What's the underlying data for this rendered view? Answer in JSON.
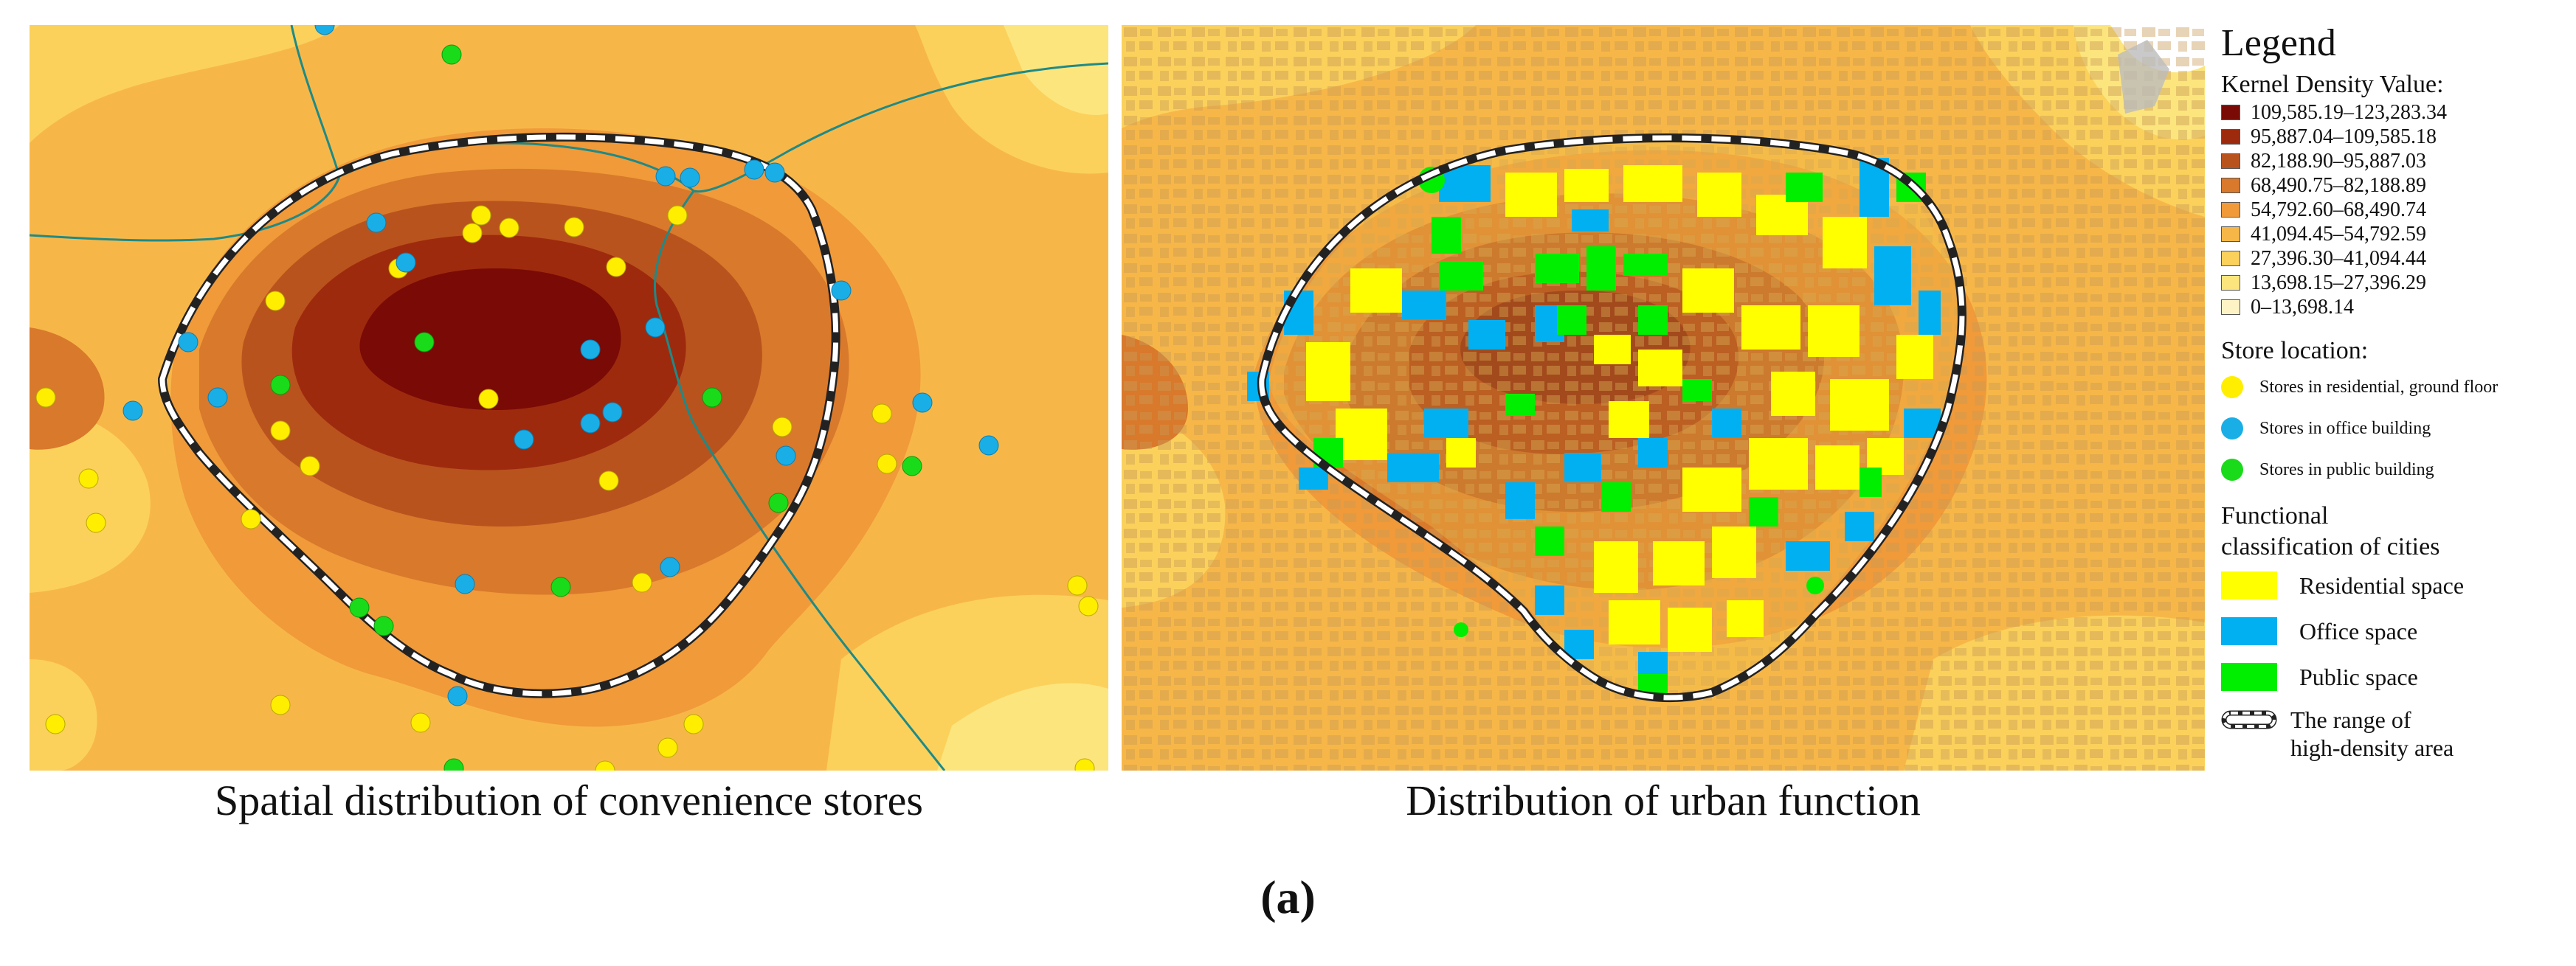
{
  "captions": {
    "left": "Spatial distribution of convenience stores",
    "right": "Distribution of urban function",
    "figure_label": "(a)"
  },
  "legend": {
    "title": "Legend",
    "kernel_density_heading": "Kernel Density Value:",
    "kernel_density_classes": [
      {
        "label": "109,585.19–123,283.34",
        "color": "#7a0a05"
      },
      {
        "label": "95,887.04–109,585.18",
        "color": "#9e2a0e"
      },
      {
        "label": "82,188.90–95,887.03",
        "color": "#b9531e"
      },
      {
        "label": "68,490.75–82,188.89",
        "color": "#d9792b"
      },
      {
        "label": "54,792.60–68,490.74",
        "color": "#f09a3a"
      },
      {
        "label": "41,094.45–54,792.59",
        "color": "#f7b748"
      },
      {
        "label": "27,396.30–41,094.44",
        "color": "#fbd15c"
      },
      {
        "label": "13,698.15–27,396.29",
        "color": "#fde57e"
      },
      {
        "label": "0–13,698.14",
        "color": "#fdf3c4"
      }
    ],
    "store_location_heading": "Store location:",
    "store_types": [
      {
        "label": "Stores in residential, ground floor",
        "color": "#ffee00"
      },
      {
        "label": "Stores in office building",
        "color": "#1aaee6"
      },
      {
        "label": "Stores in public building",
        "color": "#1adb1a"
      }
    ],
    "functional_heading_line1": "Functional",
    "functional_heading_line2": "classification of cities",
    "functional_classes": [
      {
        "label": "Residential space",
        "color": "#ffff00"
      },
      {
        "label": "Office space",
        "color": "#00b0f0"
      },
      {
        "label": "Public space",
        "color": "#00ee00"
      }
    ],
    "range_label_line1": "The range of",
    "range_label_line2": "high-density area"
  }
}
